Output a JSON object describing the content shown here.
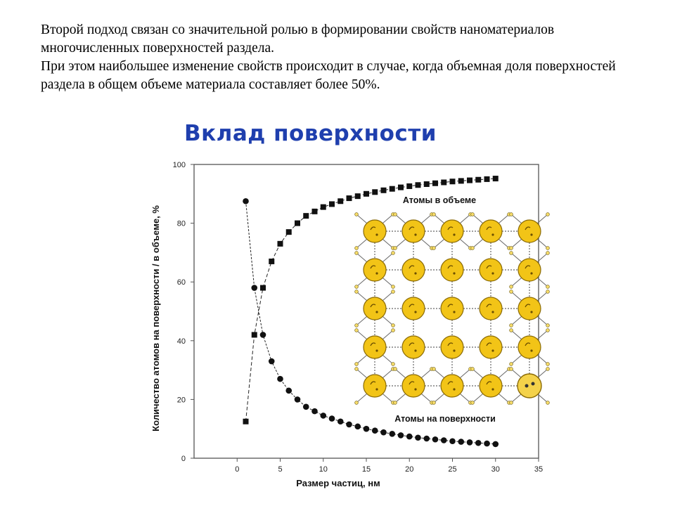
{
  "intro": {
    "line1": "Второй подход связан со значительной ролью в формировании свойств наноматериалов многочисленных поверхностей раздела.",
    "line2": "При этом наибольшее изменение свойств происходит в случае, когда объемная доля поверхностей раздела в общем объеме материала составляет более 50%."
  },
  "chart_data": {
    "type": "scatter",
    "title": "Вклад поверхности",
    "xlabel": "Размер частиц, нм",
    "ylabel": "Количество атомов на поверхности / в объеме, %",
    "xlim": [
      -5,
      35
    ],
    "ylim": [
      0,
      100
    ],
    "x_ticks": [
      "0",
      "5",
      "10",
      "15",
      "20",
      "25",
      "30",
      "35"
    ],
    "y_ticks": [
      "0",
      "20",
      "40",
      "60",
      "80",
      "100"
    ],
    "grid": false,
    "series": [
      {
        "name": "Атомы в объеме",
        "marker": "square",
        "x": [
          1,
          2,
          3,
          4,
          5,
          6,
          7,
          8,
          9,
          10,
          11,
          12,
          13,
          14,
          15,
          16,
          17,
          18,
          19,
          20,
          21,
          22,
          23,
          24,
          25,
          26,
          27,
          28,
          29,
          30
        ],
        "y": [
          12.5,
          42,
          58,
          67,
          73,
          77,
          80,
          82.5,
          84,
          85.5,
          86.5,
          87.5,
          88.5,
          89.2,
          90,
          90.6,
          91.2,
          91.7,
          92.2,
          92.6,
          93,
          93.3,
          93.6,
          93.9,
          94.2,
          94.4,
          94.6,
          94.8,
          95,
          95.2
        ]
      },
      {
        "name": "Атомы на поверхности",
        "marker": "circle",
        "x": [
          1,
          2,
          3,
          4,
          5,
          6,
          7,
          8,
          9,
          10,
          11,
          12,
          13,
          14,
          15,
          16,
          17,
          18,
          19,
          20,
          21,
          22,
          23,
          24,
          25,
          26,
          27,
          28,
          29,
          30
        ],
        "y": [
          87.5,
          58,
          42,
          33,
          27,
          23,
          20,
          17.5,
          16,
          14.5,
          13.5,
          12.5,
          11.5,
          10.8,
          10,
          9.4,
          8.8,
          8.3,
          7.8,
          7.4,
          7,
          6.7,
          6.4,
          6.1,
          5.8,
          5.6,
          5.4,
          5.2,
          5,
          4.8
        ]
      }
    ],
    "annotations": [
      {
        "text": "Атомы в объеме"
      },
      {
        "text": "Атомы на поверхности"
      }
    ],
    "inset": {
      "type": "atom-lattice",
      "rows": 5,
      "cols": 5,
      "atom_color": "#f2c417"
    }
  }
}
